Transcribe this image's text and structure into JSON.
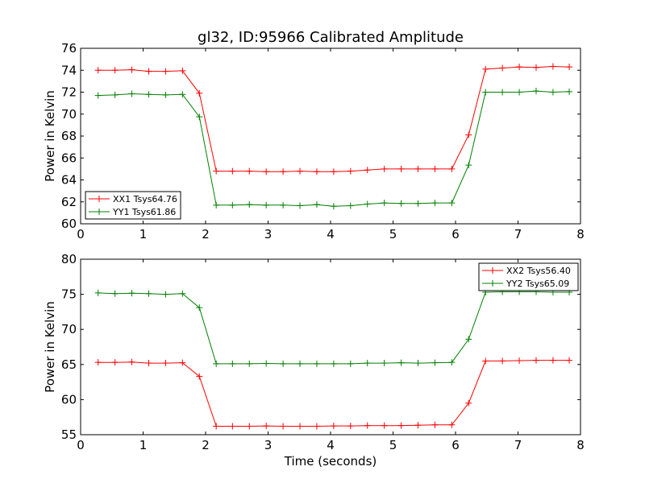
{
  "chart_data": [
    {
      "type": "line",
      "title": "gl32, ID:95966 Calibrated Amplitude",
      "xlabel": "",
      "ylabel": "Power in Kelvin",
      "xlim": [
        0,
        8
      ],
      "ylim": [
        60,
        76
      ],
      "xticks": [
        0,
        1,
        2,
        3,
        4,
        5,
        6,
        7,
        8
      ],
      "yticks": [
        60,
        62,
        64,
        66,
        68,
        70,
        72,
        74,
        76
      ],
      "grid": false,
      "legend_position": "lower-left",
      "x": [
        0.28,
        0.55,
        0.82,
        1.09,
        1.36,
        1.63,
        1.9,
        2.17,
        2.43,
        2.7,
        2.97,
        3.24,
        3.51,
        3.78,
        4.05,
        4.32,
        4.59,
        4.86,
        5.13,
        5.4,
        5.67,
        5.94,
        6.21,
        6.48,
        6.75,
        7.02,
        7.29,
        7.56,
        7.82
      ],
      "series": [
        {
          "name": "XX1 Tsys64.76",
          "color": "#ff0000",
          "values": [
            74.0,
            74.0,
            74.05,
            73.9,
            73.9,
            73.95,
            71.9,
            64.8,
            64.8,
            64.8,
            64.75,
            64.75,
            64.8,
            64.75,
            64.75,
            64.8,
            64.9,
            65.0,
            65.0,
            65.0,
            65.0,
            65.0,
            68.1,
            74.1,
            74.2,
            74.3,
            74.25,
            74.35,
            74.3
          ]
        },
        {
          "name": "YY1 Tsys61.86",
          "color": "#008000",
          "values": [
            71.7,
            71.75,
            71.85,
            71.8,
            71.75,
            71.8,
            69.75,
            61.7,
            61.7,
            61.75,
            61.7,
            61.7,
            61.65,
            61.75,
            61.6,
            61.65,
            61.8,
            61.9,
            61.85,
            61.85,
            61.9,
            61.9,
            65.35,
            72.0,
            72.0,
            72.0,
            72.1,
            72.0,
            72.05
          ]
        }
      ]
    },
    {
      "type": "line",
      "title": "",
      "xlabel": "Time (seconds)",
      "ylabel": "Power in Kelvin",
      "xlim": [
        0,
        8
      ],
      "ylim": [
        55,
        80
      ],
      "xticks": [
        0,
        1,
        2,
        3,
        4,
        5,
        6,
        7,
        8
      ],
      "yticks": [
        55,
        60,
        65,
        70,
        75,
        80
      ],
      "grid": false,
      "legend_position": "upper-right",
      "x": [
        0.28,
        0.55,
        0.82,
        1.09,
        1.36,
        1.63,
        1.9,
        2.17,
        2.43,
        2.7,
        2.97,
        3.24,
        3.51,
        3.78,
        4.05,
        4.32,
        4.59,
        4.86,
        5.13,
        5.4,
        5.67,
        5.94,
        6.21,
        6.48,
        6.75,
        7.02,
        7.29,
        7.56,
        7.82
      ],
      "series": [
        {
          "name": "XX2 Tsys56.40",
          "color": "#ff0000",
          "values": [
            65.3,
            65.3,
            65.35,
            65.2,
            65.2,
            65.25,
            63.3,
            56.2,
            56.2,
            56.2,
            56.25,
            56.2,
            56.2,
            56.2,
            56.25,
            56.25,
            56.3,
            56.3,
            56.3,
            56.35,
            56.4,
            56.4,
            59.5,
            65.5,
            65.5,
            65.55,
            65.6,
            65.6,
            65.6
          ]
        },
        {
          "name": "YY2 Tsys65.09",
          "color": "#008000",
          "values": [
            75.2,
            75.1,
            75.15,
            75.1,
            75.0,
            75.1,
            73.1,
            65.1,
            65.1,
            65.1,
            65.15,
            65.1,
            65.1,
            65.1,
            65.1,
            65.1,
            65.2,
            65.2,
            65.25,
            65.2,
            65.25,
            65.3,
            68.6,
            75.3,
            75.35,
            75.35,
            75.35,
            75.3,
            75.3
          ]
        }
      ]
    }
  ]
}
